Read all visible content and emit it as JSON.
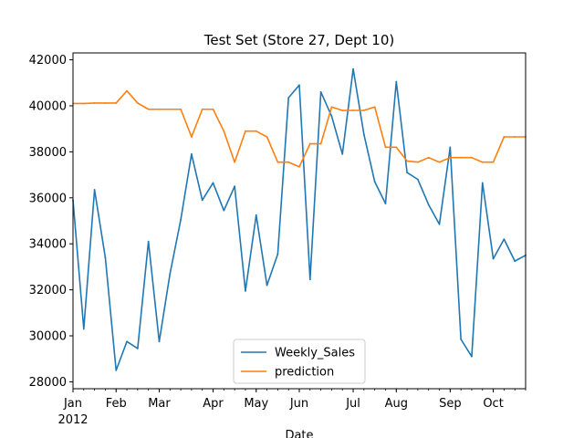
{
  "chart_data": {
    "type": "line",
    "title": "Test Set (Store 27, Dept 10)",
    "xlabel": "Date",
    "ylabel": "",
    "ylim": [
      27700,
      42300
    ],
    "x_range": [
      "2012-01-06",
      "2012-10-26"
    ],
    "x_ticks": [
      {
        "date": "2012-01-06",
        "label": "Jan",
        "sublabel": "2012"
      },
      {
        "date": "2012-02-03",
        "label": "Feb",
        "sublabel": ""
      },
      {
        "date": "2012-03-02",
        "label": "Mar",
        "sublabel": ""
      },
      {
        "date": "2012-04-06",
        "label": "Apr",
        "sublabel": ""
      },
      {
        "date": "2012-05-04",
        "label": "May",
        "sublabel": ""
      },
      {
        "date": "2012-06-01",
        "label": "Jun",
        "sublabel": ""
      },
      {
        "date": "2012-07-06",
        "label": "Jul",
        "sublabel": ""
      },
      {
        "date": "2012-08-03",
        "label": "Aug",
        "sublabel": ""
      },
      {
        "date": "2012-09-07",
        "label": "Sep",
        "sublabel": ""
      },
      {
        "date": "2012-10-05",
        "label": "Oct",
        "sublabel": ""
      }
    ],
    "y_ticks": [
      28000,
      30000,
      32000,
      34000,
      36000,
      38000,
      40000,
      42000
    ],
    "y_tick_labels": [
      "28000",
      "30000",
      "32000",
      "34000",
      "36000",
      "38000",
      "40000",
      "42000"
    ],
    "dates": [
      "2012-01-06",
      "2012-01-13",
      "2012-01-20",
      "2012-01-27",
      "2012-02-03",
      "2012-02-10",
      "2012-02-17",
      "2012-02-24",
      "2012-03-02",
      "2012-03-09",
      "2012-03-16",
      "2012-03-23",
      "2012-03-30",
      "2012-04-06",
      "2012-04-13",
      "2012-04-20",
      "2012-04-27",
      "2012-05-04",
      "2012-05-11",
      "2012-05-18",
      "2012-05-25",
      "2012-06-01",
      "2012-06-08",
      "2012-06-15",
      "2012-06-22",
      "2012-06-29",
      "2012-07-06",
      "2012-07-13",
      "2012-07-20",
      "2012-07-27",
      "2012-08-03",
      "2012-08-10",
      "2012-08-17",
      "2012-08-24",
      "2012-08-31",
      "2012-09-07",
      "2012-09-14",
      "2012-09-21",
      "2012-09-28",
      "2012-10-05",
      "2012-10-12",
      "2012-10-19",
      "2012-10-26"
    ],
    "series": [
      {
        "name": "Weekly_Sales",
        "color": "#1f77b4",
        "values": [
          35900,
          30300,
          36350,
          33400,
          28500,
          29750,
          29450,
          34100,
          29750,
          32700,
          35050,
          37900,
          35900,
          36650,
          35450,
          36500,
          31950,
          35250,
          32200,
          33550,
          40350,
          40900,
          32450,
          40600,
          39550,
          37900,
          41600,
          38750,
          36700,
          35750,
          41050,
          37100,
          36800,
          35700,
          34850,
          38200,
          29850,
          29100,
          36650,
          33350,
          34200,
          33250,
          33500
        ]
      },
      {
        "name": "prediction",
        "color": "#ff7f0e",
        "values": [
          40100,
          40100,
          40120,
          40120,
          40120,
          40650,
          40120,
          39850,
          39850,
          39850,
          39850,
          38650,
          39850,
          39850,
          38900,
          37550,
          38900,
          38900,
          38650,
          37550,
          37550,
          37350,
          38350,
          38350,
          39950,
          39800,
          39800,
          39800,
          39950,
          38200,
          38200,
          37600,
          37550,
          37750,
          37550,
          37750,
          37750,
          37750,
          37550,
          37550,
          38650,
          38650,
          38650
        ]
      }
    ],
    "grid": false,
    "legend": "lower-center"
  }
}
